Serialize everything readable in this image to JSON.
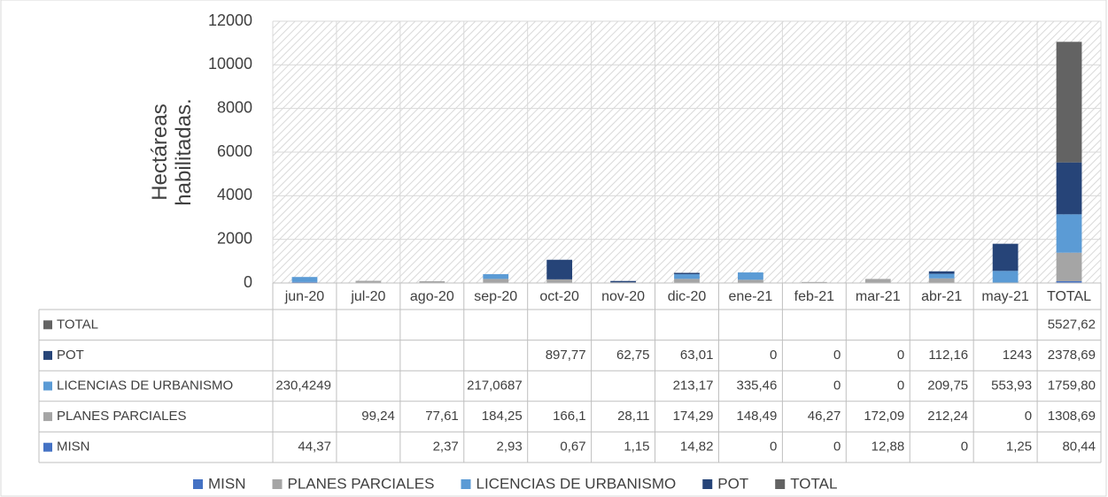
{
  "chart_data": {
    "type": "stacked_bar",
    "y_label": "Hectáreas habilitadas.",
    "categories": [
      "jun-20",
      "jul-20",
      "ago-20",
      "sep-20",
      "oct-20",
      "nov-20",
      "dic-20",
      "ene-21",
      "feb-21",
      "mar-21",
      "abr-21",
      "may-21",
      "TOTAL"
    ],
    "ylim": [
      0,
      12000
    ],
    "yticks": [
      0,
      2000,
      4000,
      6000,
      8000,
      10000,
      12000
    ],
    "series": [
      {
        "name": "MISN",
        "color": "#4472c4",
        "values": [
          44.37,
          null,
          2.37,
          2.93,
          0.67,
          1.15,
          14.82,
          0,
          0,
          12.88,
          0,
          1.25,
          80.44
        ],
        "value_labels": [
          "44,37",
          null,
          "2,37",
          "2,93",
          "0,67",
          "1,15",
          "14,82",
          "0",
          "0",
          "12,88",
          "0",
          "1,25",
          "80,44"
        ]
      },
      {
        "name": "PLANES PARCIALES",
        "color": "#a5a5a5",
        "values": [
          null,
          99.24,
          77.61,
          184.25,
          166.1,
          28.11,
          174.29,
          148.49,
          46.27,
          172.09,
          212.24,
          0,
          1308.69
        ],
        "value_labels": [
          null,
          "99,24",
          "77,61",
          "184,25",
          "166,1",
          "28,11",
          "174,29",
          "148,49",
          "46,27",
          "172,09",
          "212,24",
          "0",
          "1308,69"
        ]
      },
      {
        "name": "LICENCIAS DE URBANISMO",
        "color": "#5b9bd5",
        "values": [
          230.4249,
          null,
          null,
          217.0687,
          null,
          null,
          213.17,
          335.46,
          0,
          0,
          209.75,
          553.93,
          1759.8
        ],
        "value_labels": [
          "230,4249",
          null,
          null,
          "217,0687",
          null,
          null,
          "213,17",
          "335,46",
          "0",
          "0",
          "209,75",
          "553,93",
          "1759,80"
        ]
      },
      {
        "name": "POT",
        "color": "#264478",
        "values": [
          null,
          null,
          null,
          null,
          897.77,
          62.75,
          63.01,
          0,
          0,
          0,
          112.16,
          1243,
          2378.69
        ],
        "value_labels": [
          null,
          null,
          null,
          null,
          "897,77",
          "62,75",
          "63,01",
          "0",
          "0",
          "0",
          "112,16",
          "1243",
          "2378,69"
        ]
      },
      {
        "name": "TOTAL",
        "color": "#636363",
        "values": [
          null,
          null,
          null,
          null,
          null,
          null,
          null,
          null,
          null,
          null,
          null,
          null,
          5527.62
        ],
        "value_labels": [
          null,
          null,
          null,
          null,
          null,
          null,
          null,
          null,
          null,
          null,
          null,
          null,
          "5527,62"
        ]
      }
    ],
    "grid": true,
    "legend": "bottom"
  }
}
